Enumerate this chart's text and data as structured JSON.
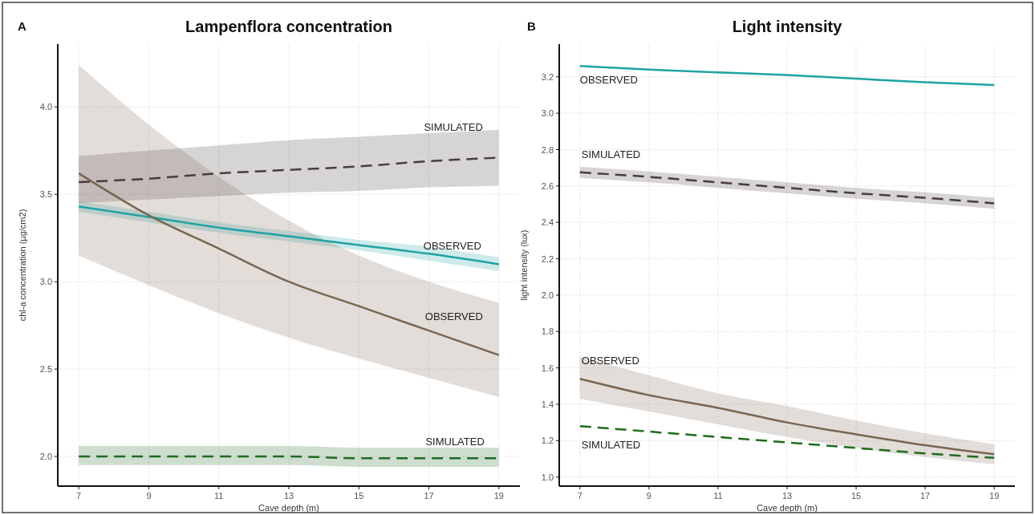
{
  "chart_data": [
    {
      "type": "line",
      "title": "Lampenflora concentration",
      "xlabel": "Cave depth (m)",
      "ylabel": "chl-a concentration (µg/cm2)",
      "annotations": [
        "A"
      ],
      "grid": true,
      "x": [
        7,
        9,
        11,
        13,
        15,
        17,
        19
      ],
      "xlim": [
        6.4,
        19.6
      ],
      "xticks": [
        7,
        9,
        11,
        13,
        15,
        17,
        19
      ],
      "ylim": [
        1.83,
        4.36
      ],
      "yticks": [
        {
          "value": 2,
          "label": "2.0"
        },
        2.5,
        {
          "value": 3,
          "label": "3.0"
        },
        3.5,
        {
          "value": 4,
          "label": "4.0"
        }
      ],
      "series": [
        {
          "name": "SIMULATED",
          "color": "#4a3c3c",
          "line_style": "dashed",
          "values": [
            3.57,
            3.59,
            3.62,
            3.64,
            3.66,
            3.69,
            3.71
          ],
          "lower": [
            3.45,
            3.47,
            3.49,
            3.51,
            3.52,
            3.54,
            3.55
          ],
          "upper": [
            3.72,
            3.75,
            3.78,
            3.81,
            3.83,
            3.85,
            3.87
          ]
        },
        {
          "name": "OBSERVED",
          "color": "#1fa3a3",
          "line_style": "solid",
          "values": [
            3.43,
            3.37,
            3.31,
            3.26,
            3.21,
            3.16,
            3.1
          ],
          "lower": [
            3.4,
            3.34,
            3.28,
            3.23,
            3.18,
            3.12,
            3.06
          ],
          "upper": [
            3.46,
            3.4,
            3.34,
            3.29,
            3.24,
            3.2,
            3.14
          ]
        },
        {
          "name": "OBSERVED",
          "color": "#7a6650",
          "line_style": "solid",
          "values": [
            3.62,
            3.38,
            3.19,
            3.0,
            2.86,
            2.72,
            2.58
          ],
          "lower": [
            3.15,
            2.98,
            2.82,
            2.68,
            2.56,
            2.45,
            2.34
          ],
          "upper": [
            4.24,
            3.9,
            3.6,
            3.35,
            3.15,
            3.0,
            2.88
          ]
        },
        {
          "name": "SIMULATED",
          "color": "#1e6b1e",
          "line_style": "dashed",
          "values": [
            2.0,
            2.0,
            2.0,
            2.0,
            1.99,
            1.99,
            1.99
          ],
          "lower": [
            1.95,
            1.95,
            1.95,
            1.95,
            1.94,
            1.94,
            1.94
          ],
          "upper": [
            2.06,
            2.06,
            2.06,
            2.06,
            2.05,
            2.05,
            2.05
          ]
        }
      ]
    },
    {
      "type": "line",
      "title": "Light intensity",
      "xlabel": "Cave depth (m)",
      "ylabel": "light intensity (lux)",
      "annotations": [
        "B"
      ],
      "grid": true,
      "x": [
        7,
        9,
        11,
        13,
        15,
        17,
        19
      ],
      "xlim": [
        6.4,
        19.6
      ],
      "xticks": [
        7,
        9,
        11,
        13,
        15,
        17,
        19
      ],
      "ylim": [
        0.95,
        3.38
      ],
      "yticks": [
        {
          "value": 1,
          "label": "1.0"
        },
        1.2,
        1.4,
        1.6,
        1.8,
        {
          "value": 2,
          "label": "2.0"
        },
        2.2,
        2.4,
        2.6,
        2.8,
        {
          "value": 3,
          "label": "3.0"
        },
        3.2
      ],
      "series": [
        {
          "name": "OBSERVED",
          "color": "#1fa3a3",
          "line_style": "solid",
          "values": [
            3.26,
            3.24,
            3.225,
            3.21,
            3.19,
            3.17,
            3.155
          ]
        },
        {
          "name": "SIMULATED",
          "color": "#4a3c3c",
          "line_style": "dashed",
          "values": [
            2.675,
            2.65,
            2.62,
            2.59,
            2.56,
            2.535,
            2.505
          ],
          "lower": [
            2.645,
            2.62,
            2.59,
            2.56,
            2.53,
            2.505,
            2.475
          ],
          "upper": [
            2.705,
            2.68,
            2.65,
            2.62,
            2.59,
            2.565,
            2.535
          ]
        },
        {
          "name": "OBSERVED",
          "color": "#7a6650",
          "line_style": "solid",
          "values": [
            1.54,
            1.45,
            1.38,
            1.3,
            1.235,
            1.175,
            1.125
          ],
          "lower": [
            1.43,
            1.36,
            1.29,
            1.22,
            1.16,
            1.11,
            1.07
          ],
          "upper": [
            1.66,
            1.56,
            1.46,
            1.39,
            1.31,
            1.24,
            1.18
          ]
        },
        {
          "name": "SIMULATED",
          "color": "#1e6b1e",
          "line_style": "dashed",
          "values": [
            1.28,
            1.25,
            1.22,
            1.19,
            1.16,
            1.13,
            1.105
          ]
        }
      ]
    }
  ]
}
